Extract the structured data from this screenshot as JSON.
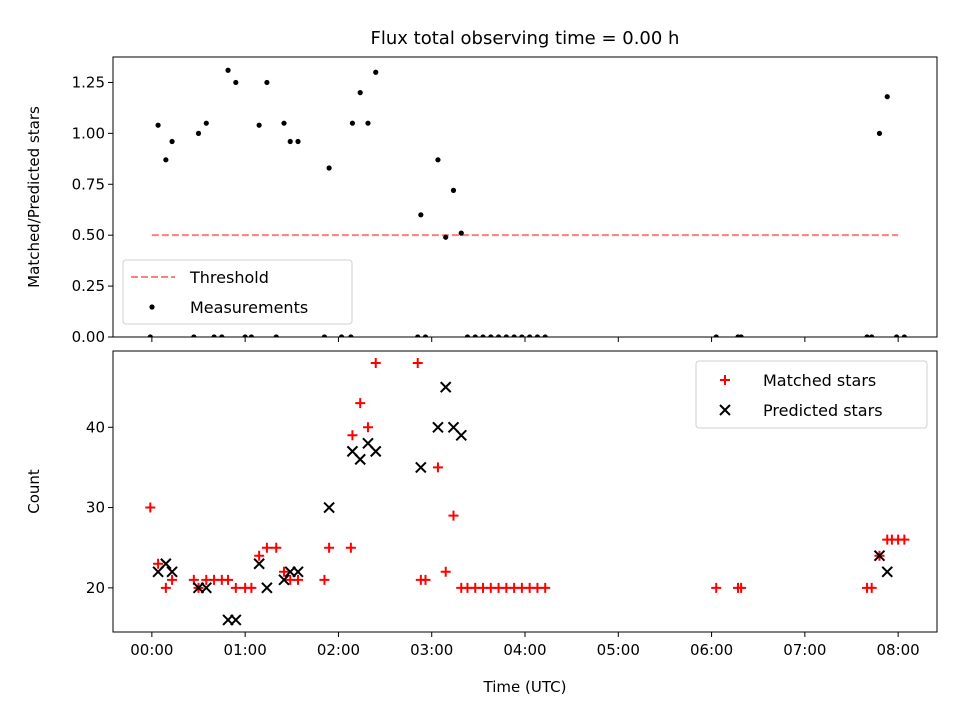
{
  "chart_data": [
    {
      "type": "scatter",
      "title": "Flux total observing time = 0.00 h",
      "xlabel": "",
      "ylabel": "Matched/Predicted stars",
      "xlim": [
        "23:35",
        "08:25"
      ],
      "ylim": [
        0,
        1.375
      ],
      "yticks": [
        0.0,
        0.25,
        0.5,
        0.75,
        1.0,
        1.25
      ],
      "ytick_labels": [
        "0.00",
        "0.25",
        "0.50",
        "0.75",
        "1.00",
        "1.25"
      ],
      "legend_position": "lower-left",
      "threshold": {
        "name": "Threshold",
        "value": 0.5,
        "x_range": [
          "00:00",
          "08:00"
        ],
        "color": "#ff7f7f"
      },
      "series": [
        {
          "name": "Measurements",
          "color": "#000000",
          "points": [
            [
              "23:59",
              0.0
            ],
            [
              "00:04",
              1.04
            ],
            [
              "00:09",
              0.87
            ],
            [
              "00:13",
              0.96
            ],
            [
              "00:27",
              0.0
            ],
            [
              "00:30",
              1.0
            ],
            [
              "00:35",
              1.05
            ],
            [
              "00:40",
              0.0
            ],
            [
              "00:45",
              0.0
            ],
            [
              "00:49",
              1.31
            ],
            [
              "00:54",
              1.25
            ],
            [
              "01:00",
              0.0
            ],
            [
              "01:04",
              0.0
            ],
            [
              "01:09",
              1.04
            ],
            [
              "01:14",
              1.25
            ],
            [
              "01:20",
              0.0
            ],
            [
              "01:25",
              1.05
            ],
            [
              "01:29",
              0.96
            ],
            [
              "01:34",
              0.96
            ],
            [
              "01:51",
              0.0
            ],
            [
              "01:54",
              0.83
            ],
            [
              "02:02",
              0.0
            ],
            [
              "02:08",
              0.0
            ],
            [
              "02:09",
              1.05
            ],
            [
              "02:14",
              1.2
            ],
            [
              "02:19",
              1.05
            ],
            [
              "02:24",
              1.3
            ],
            [
              "02:51",
              0.0
            ],
            [
              "02:53",
              0.6
            ],
            [
              "02:56",
              0.0
            ],
            [
              "03:04",
              0.87
            ],
            [
              "03:09",
              0.49
            ],
            [
              "03:14",
              0.72
            ],
            [
              "03:19",
              0.51
            ],
            [
              "03:23",
              0.0
            ],
            [
              "03:28",
              0.0
            ],
            [
              "03:33",
              0.0
            ],
            [
              "03:38",
              0.0
            ],
            [
              "03:43",
              0.0
            ],
            [
              "03:48",
              0.0
            ],
            [
              "03:53",
              0.0
            ],
            [
              "03:58",
              0.0
            ],
            [
              "04:03",
              0.0
            ],
            [
              "04:08",
              0.0
            ],
            [
              "04:13",
              0.0
            ],
            [
              "06:03",
              0.0
            ],
            [
              "06:17",
              0.0
            ],
            [
              "06:19",
              0.0
            ],
            [
              "07:40",
              0.0
            ],
            [
              "07:43",
              0.0
            ],
            [
              "07:48",
              1.0
            ],
            [
              "07:53",
              1.18
            ],
            [
              "07:59",
              0.0
            ],
            [
              "08:04",
              0.0
            ]
          ]
        }
      ]
    },
    {
      "type": "scatter",
      "title": "",
      "xlabel": "Time (UTC)",
      "ylabel": "Count",
      "xlim": [
        "23:35",
        "08:25"
      ],
      "ylim": [
        14.5,
        49.5
      ],
      "yticks": [
        20,
        30,
        40
      ],
      "xticks": [
        "00:00",
        "01:00",
        "02:00",
        "03:00",
        "04:00",
        "05:00",
        "06:00",
        "07:00",
        "08:00"
      ],
      "legend_position": "upper-right",
      "series": [
        {
          "name": "Matched stars",
          "marker": "plus",
          "color": "#ff0000",
          "points": [
            [
              "23:59",
              30
            ],
            [
              "00:04",
              23
            ],
            [
              "00:09",
              20
            ],
            [
              "00:13",
              21
            ],
            [
              "00:27",
              21
            ],
            [
              "00:30",
              20
            ],
            [
              "00:35",
              21
            ],
            [
              "00:40",
              21
            ],
            [
              "00:45",
              21
            ],
            [
              "00:49",
              21
            ],
            [
              "00:54",
              20
            ],
            [
              "01:00",
              20
            ],
            [
              "01:04",
              20
            ],
            [
              "01:09",
              24
            ],
            [
              "01:14",
              25
            ],
            [
              "01:20",
              25
            ],
            [
              "01:25",
              22
            ],
            [
              "01:29",
              21
            ],
            [
              "01:34",
              21
            ],
            [
              "01:51",
              21
            ],
            [
              "01:54",
              25
            ],
            [
              "02:08",
              25
            ],
            [
              "02:09",
              39
            ],
            [
              "02:14",
              43
            ],
            [
              "02:19",
              40
            ],
            [
              "02:24",
              48
            ],
            [
              "02:51",
              48
            ],
            [
              "02:53",
              21
            ],
            [
              "02:56",
              21
            ],
            [
              "03:04",
              35
            ],
            [
              "03:09",
              22
            ],
            [
              "03:14",
              29
            ],
            [
              "03:19",
              20
            ],
            [
              "03:23",
              20
            ],
            [
              "03:28",
              20
            ],
            [
              "03:33",
              20
            ],
            [
              "03:38",
              20
            ],
            [
              "03:43",
              20
            ],
            [
              "03:48",
              20
            ],
            [
              "03:53",
              20
            ],
            [
              "03:58",
              20
            ],
            [
              "04:03",
              20
            ],
            [
              "04:08",
              20
            ],
            [
              "04:13",
              20
            ],
            [
              "06:03",
              20
            ],
            [
              "06:17",
              20
            ],
            [
              "06:19",
              20
            ],
            [
              "07:40",
              20
            ],
            [
              "07:43",
              20
            ],
            [
              "07:48",
              24
            ],
            [
              "07:53",
              26
            ],
            [
              "07:56",
              26
            ],
            [
              "08:00",
              26
            ],
            [
              "08:04",
              26
            ]
          ]
        },
        {
          "name": "Predicted stars",
          "marker": "x",
          "color": "#000000",
          "points": [
            [
              "00:04",
              22
            ],
            [
              "00:09",
              23
            ],
            [
              "00:13",
              22
            ],
            [
              "00:30",
              20
            ],
            [
              "00:35",
              20
            ],
            [
              "00:49",
              16
            ],
            [
              "00:54",
              16
            ],
            [
              "01:09",
              23
            ],
            [
              "01:14",
              20
            ],
            [
              "01:25",
              21
            ],
            [
              "01:29",
              22
            ],
            [
              "01:34",
              22
            ],
            [
              "01:54",
              30
            ],
            [
              "02:09",
              37
            ],
            [
              "02:14",
              36
            ],
            [
              "02:19",
              38
            ],
            [
              "02:24",
              37
            ],
            [
              "02:53",
              35
            ],
            [
              "03:04",
              40
            ],
            [
              "03:09",
              45
            ],
            [
              "03:14",
              40
            ],
            [
              "03:19",
              39
            ],
            [
              "07:48",
              24
            ],
            [
              "07:53",
              22
            ]
          ]
        }
      ]
    }
  ]
}
